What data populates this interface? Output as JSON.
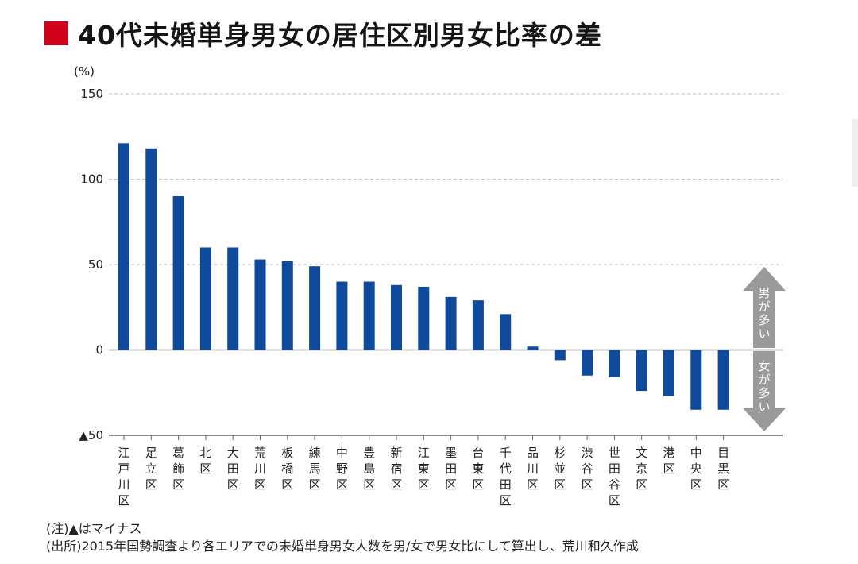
{
  "title": "40代未婚単身男女の居住区別男女比率の差",
  "colors": {
    "title_mark": "#d0021b",
    "bar": "#0f4a9c",
    "arrow": "#9a9a9a",
    "grid": "#bdbdbd"
  },
  "chart_data": {
    "type": "bar",
    "unit_label": "(%)",
    "ylim": [
      -50,
      150
    ],
    "yticks": [
      150,
      100,
      50,
      0,
      -50
    ],
    "ytick_labels": [
      "150",
      "100",
      "50",
      "0",
      "▲50"
    ],
    "grid": true,
    "categories": [
      "江戸川区",
      "足立区",
      "葛飾区",
      "北区",
      "大田区",
      "荒川区",
      "板橋区",
      "練馬区",
      "中野区",
      "豊島区",
      "新宿区",
      "江東区",
      "墨田区",
      "台東区",
      "千代田区",
      "品川区",
      "杉並区",
      "渋谷区",
      "世田谷区",
      "文京区",
      "港区",
      "中央区",
      "目黒区"
    ],
    "values": [
      121,
      118,
      90,
      60,
      60,
      53,
      52,
      49,
      40,
      40,
      38,
      37,
      31,
      29,
      21,
      2,
      -6,
      -15,
      -16,
      -24,
      -27,
      -35,
      -35
    ],
    "annotations": {
      "up": "男が多い",
      "down": "女が多い"
    }
  },
  "notes": [
    "(注)▲はマイナス",
    "(出所)2015年国勢調査より各エリアでの未婚単身男女人数を男/女で男女比にして算出し、荒川和久作成"
  ]
}
